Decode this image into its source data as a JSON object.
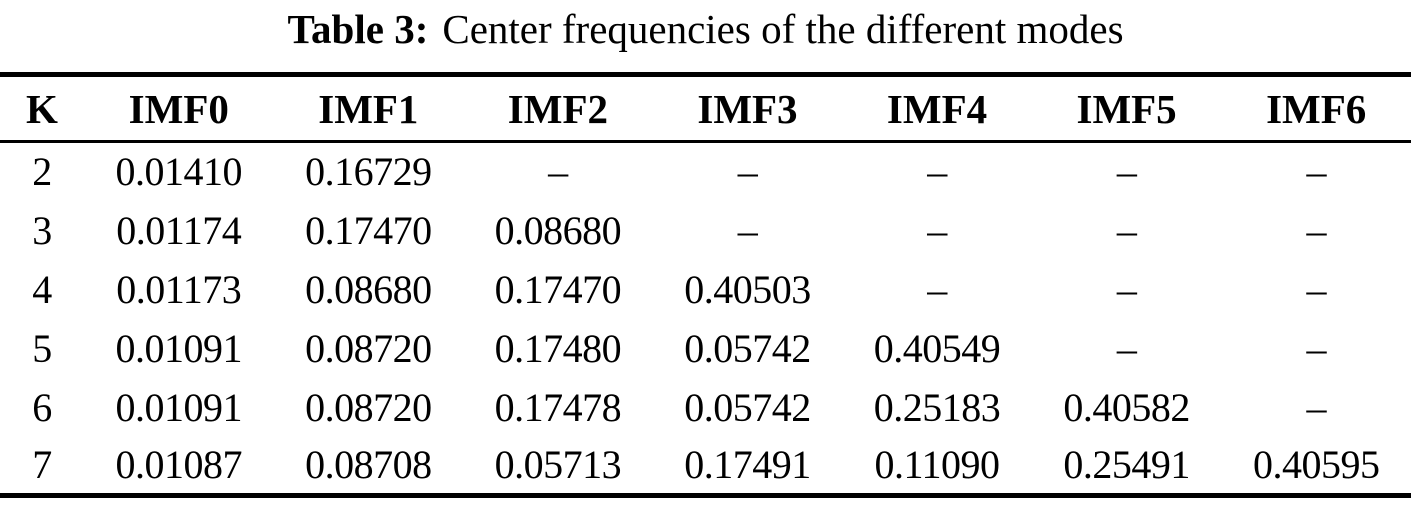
{
  "caption": {
    "label": "Table 3:",
    "text": "Center frequencies of the different modes"
  },
  "table": {
    "columns": [
      "K",
      "IMF0",
      "IMF1",
      "IMF2",
      "IMF3",
      "IMF4",
      "IMF5",
      "IMF6"
    ],
    "rows": [
      [
        "2",
        "0.01410",
        "0.16729",
        "–",
        "–",
        "–",
        "–",
        "–"
      ],
      [
        "3",
        "0.01174",
        "0.17470",
        "0.08680",
        "–",
        "–",
        "–",
        "–"
      ],
      [
        "4",
        "0.01173",
        "0.08680",
        "0.17470",
        "0.40503",
        "–",
        "–",
        "–"
      ],
      [
        "5",
        "0.01091",
        "0.08720",
        "0.17480",
        "0.05742",
        "0.40549",
        "–",
        "–"
      ],
      [
        "6",
        "0.01091",
        "0.08720",
        "0.17478",
        "0.05742",
        "0.25183",
        "0.40582",
        "–"
      ],
      [
        "7",
        "0.01087",
        "0.08708",
        "0.05713",
        "0.17491",
        "0.11090",
        "0.25491",
        "0.40595"
      ]
    ],
    "empty_marker": "–"
  },
  "colors": {
    "text": "#000000",
    "background": "#ffffff",
    "rule": "#000000"
  }
}
